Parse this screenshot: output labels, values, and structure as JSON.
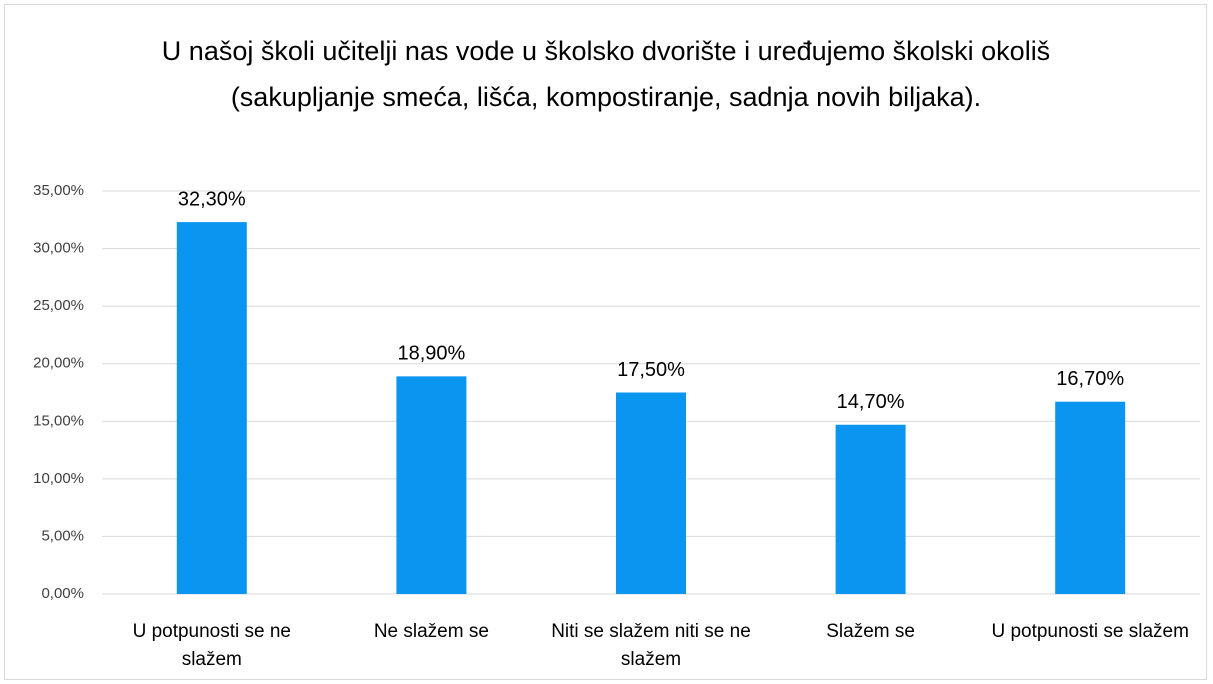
{
  "chart_data": {
    "type": "bar",
    "title": "U našoj školi učitelji nas vode u školsko dvorište i uređujemo školski okoliš (sakupljanje smeća, lišća, kompostiranje, sadnja novih biljaka).",
    "categories": [
      "U potpunosti se ne slažem",
      "Ne slažem se",
      "Niti se slažem niti se ne slažem",
      "Slažem se",
      "U potpunosti se slažem"
    ],
    "values": [
      32.3,
      18.9,
      17.5,
      14.7,
      16.7
    ],
    "value_labels": [
      "32,30%",
      "18,90%",
      "17,50%",
      "14,70%",
      "16,70%"
    ],
    "color": "#0a96f0",
    "ylim": [
      0,
      35
    ],
    "yticks": [
      {
        "value": 0,
        "label": "0,00%"
      },
      {
        "value": 5,
        "label": "5,00%"
      },
      {
        "value": 10,
        "label": "10,00%"
      },
      {
        "value": 15,
        "label": "15,00%"
      },
      {
        "value": 20,
        "label": "20,00%"
      },
      {
        "value": 25,
        "label": "25,00%"
      },
      {
        "value": 30,
        "label": "30,00%"
      },
      {
        "value": 35,
        "label": "35,00%"
      }
    ],
    "grid": true
  }
}
